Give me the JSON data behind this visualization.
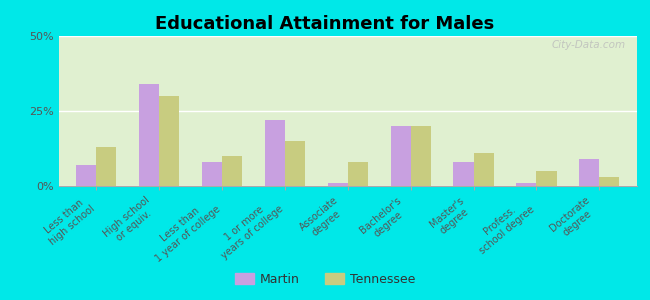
{
  "title": "Educational Attainment for Males",
  "categories": [
    "Less than\nhigh school",
    "High school\nor equiv.",
    "Less than\n1 year of college",
    "1 or more\nyears of college",
    "Associate\ndegree",
    "Bachelor's\ndegree",
    "Master's\ndegree",
    "Profess.\nschool degree",
    "Doctorate\ndegree"
  ],
  "martin": [
    7,
    34,
    8,
    22,
    1,
    20,
    8,
    1,
    9
  ],
  "tennessee": [
    13,
    30,
    10,
    15,
    8,
    20,
    11,
    5,
    3
  ],
  "martin_color": "#c8a0e0",
  "tennessee_color": "#c8cc80",
  "background_color": "#e0f0d0",
  "outer_background": "#00e8e8",
  "ylim": [
    0,
    50
  ],
  "yticks": [
    0,
    25,
    50
  ],
  "ytick_labels": [
    "0%",
    "25%",
    "50%"
  ],
  "watermark": "City-Data.com",
  "legend_martin": "Martin",
  "legend_tennessee": "Tennessee",
  "bar_width": 0.32
}
